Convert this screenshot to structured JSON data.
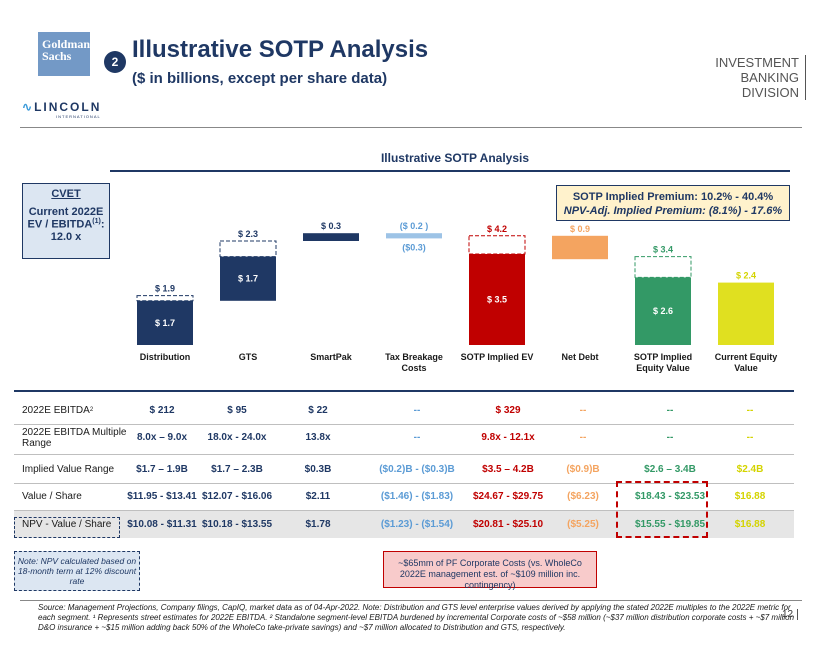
{
  "header": {
    "logo_text": "Goldman Sachs",
    "step": "2",
    "title": "Illustrative SOTP Analysis",
    "subtitle": "($ in billions, except per share data)",
    "division_line1": "INVESTMENT BANKING",
    "division_line2": "DIVISION",
    "lincoln": "LINCOLN",
    "lincoln_sub": "INTERNATIONAL"
  },
  "chart_title": "Illustrative SOTP Analysis",
  "cvet": {
    "title": "CVET",
    "line1": "Current 2022E",
    "line2": "EV / EBITDA",
    "sup": "(1)",
    "line2_end": ":",
    "line3": "12.0 x"
  },
  "premium": {
    "line1": "SOTP Implied Premium: 10.2% - 40.4%",
    "line2": "NPV-Adj. Implied Premium: (8.1%) - 17.6%"
  },
  "chart_data": {
    "type": "waterfall",
    "colors": {
      "navy": "#1f3864",
      "red": "#c00000",
      "orange": "#f4a460",
      "green": "#339966",
      "yellow": "#e0e020",
      "light_blue": "#9dc3e6"
    },
    "bars": [
      {
        "category": "Distribution",
        "low": 0,
        "high": 1.7,
        "ext_high": 1.9,
        "inner_label": "$ 1.7",
        "top_label": "$ 1.9",
        "color": "navy"
      },
      {
        "category": "GTS",
        "low": 1.7,
        "high": 3.4,
        "ext_high": 4.0,
        "inner_label": "$ 1.7",
        "top_label": "$ 2.3",
        "color": "navy"
      },
      {
        "category": "SmartPak",
        "low": 4.0,
        "high": 4.3,
        "top_label": "$ 0.3",
        "color": "navy"
      },
      {
        "category": "Tax Breakage Costs",
        "low": 4.1,
        "high": 4.3,
        "top_label": "($ 0.2 )",
        "bottom_label": "($0.3)",
        "color": "light_blue"
      },
      {
        "category": "SOTP Implied EV",
        "low": 0,
        "high": 3.5,
        "ext_high": 4.2,
        "inner_label": "$ 3.5",
        "top_label": "$ 4.2",
        "color": "red"
      },
      {
        "category": "Net Debt",
        "low": 3.3,
        "high": 4.2,
        "top_label": "$ 0.9",
        "color": "orange"
      },
      {
        "category": "SOTP Implied Equity Value",
        "low": 0,
        "high": 2.6,
        "ext_high": 3.4,
        "inner_label": "$ 2.6",
        "top_label": "$ 3.4",
        "color": "green"
      },
      {
        "category": "Current Equity Value",
        "low": 0,
        "high": 2.4,
        "top_label": "$ 2.4",
        "color": "yellow"
      }
    ],
    "category_labels": [
      "Distribution",
      "GTS",
      "SmartPak",
      "Tax Breakage Costs",
      "SOTP Implied EV",
      "Net Debt",
      "SOTP Implied Equity Value",
      "Current Equity Value"
    ]
  },
  "table": {
    "rows": [
      {
        "label": "2022E EBITDA",
        "sup": "2",
        "cells": [
          "$ 212",
          "$ 95",
          "$ 22",
          "--",
          "$ 329",
          "--",
          "--",
          "--"
        ]
      },
      {
        "label": "2022E EBITDA Multiple Range",
        "cells": [
          "8.0x – 9.0x",
          "18.0x - 24.0x",
          "13.8x",
          "--",
          "9.8x - 12.1x",
          "--",
          "--",
          "--"
        ]
      },
      {
        "label": "Implied Value Range",
        "cells": [
          "$1.7 – 1.9B",
          "$1.7 – 2.3B",
          "$0.3B",
          "($0.2)B - ($0.3)B",
          "$3.5 – 4.2B",
          "($0.9)B",
          "$2.6 – 3.4B",
          "$2.4B"
        ]
      },
      {
        "label": "Value / Share",
        "cells": [
          "$11.95 - $13.41",
          "$12.07 - $16.06",
          "$2.11",
          "($1.46) - ($1.83)",
          "$24.67 - $29.75",
          "($6.23)",
          "$18.43 - $23.53",
          "$16.88"
        ]
      },
      {
        "label": "NPV - Value / Share",
        "cells": [
          "$10.08 - $11.31",
          "$10.18 - $13.55",
          "$1.78",
          "($1.23) - ($1.54)",
          "$20.81 - $25.10",
          "($5.25)",
          "$15.55 - $19.85",
          "$16.88"
        ]
      }
    ],
    "cell_colors": [
      "#1f3864",
      "#1f3864",
      "#1f3864",
      "#5b9bd5",
      "#c00000",
      "#f4a460",
      "#339966",
      "#d4d400"
    ]
  },
  "note": "Note: NPV calculated based on 18-month term at 12% discount rate",
  "corp_costs": "~$65mm of PF Corporate Costs (vs. WholeCo 2022E management est. of ~$109 million inc. contingency)",
  "footnote": "Source: Management Projections, Company filings, CapIQ, market data as of 04-Apr-2022. Note: Distribution and GTS level enterprise values derived by applying the stated 2022E multiples to the 2022E metric for each segment. ¹ Represents street estimates for 2022E EBITDA. ² Standalone segment-level EBITDA burdened by incremental Corporate costs of ~$58 million (~$37 million distribution corporate costs + ~$7 million D&O insurance + ~$15 million adding back 50% of the WholeCo take-private savings) and ~$7 million allocated to Distribution and GTS, respectively.",
  "page_number": "12"
}
